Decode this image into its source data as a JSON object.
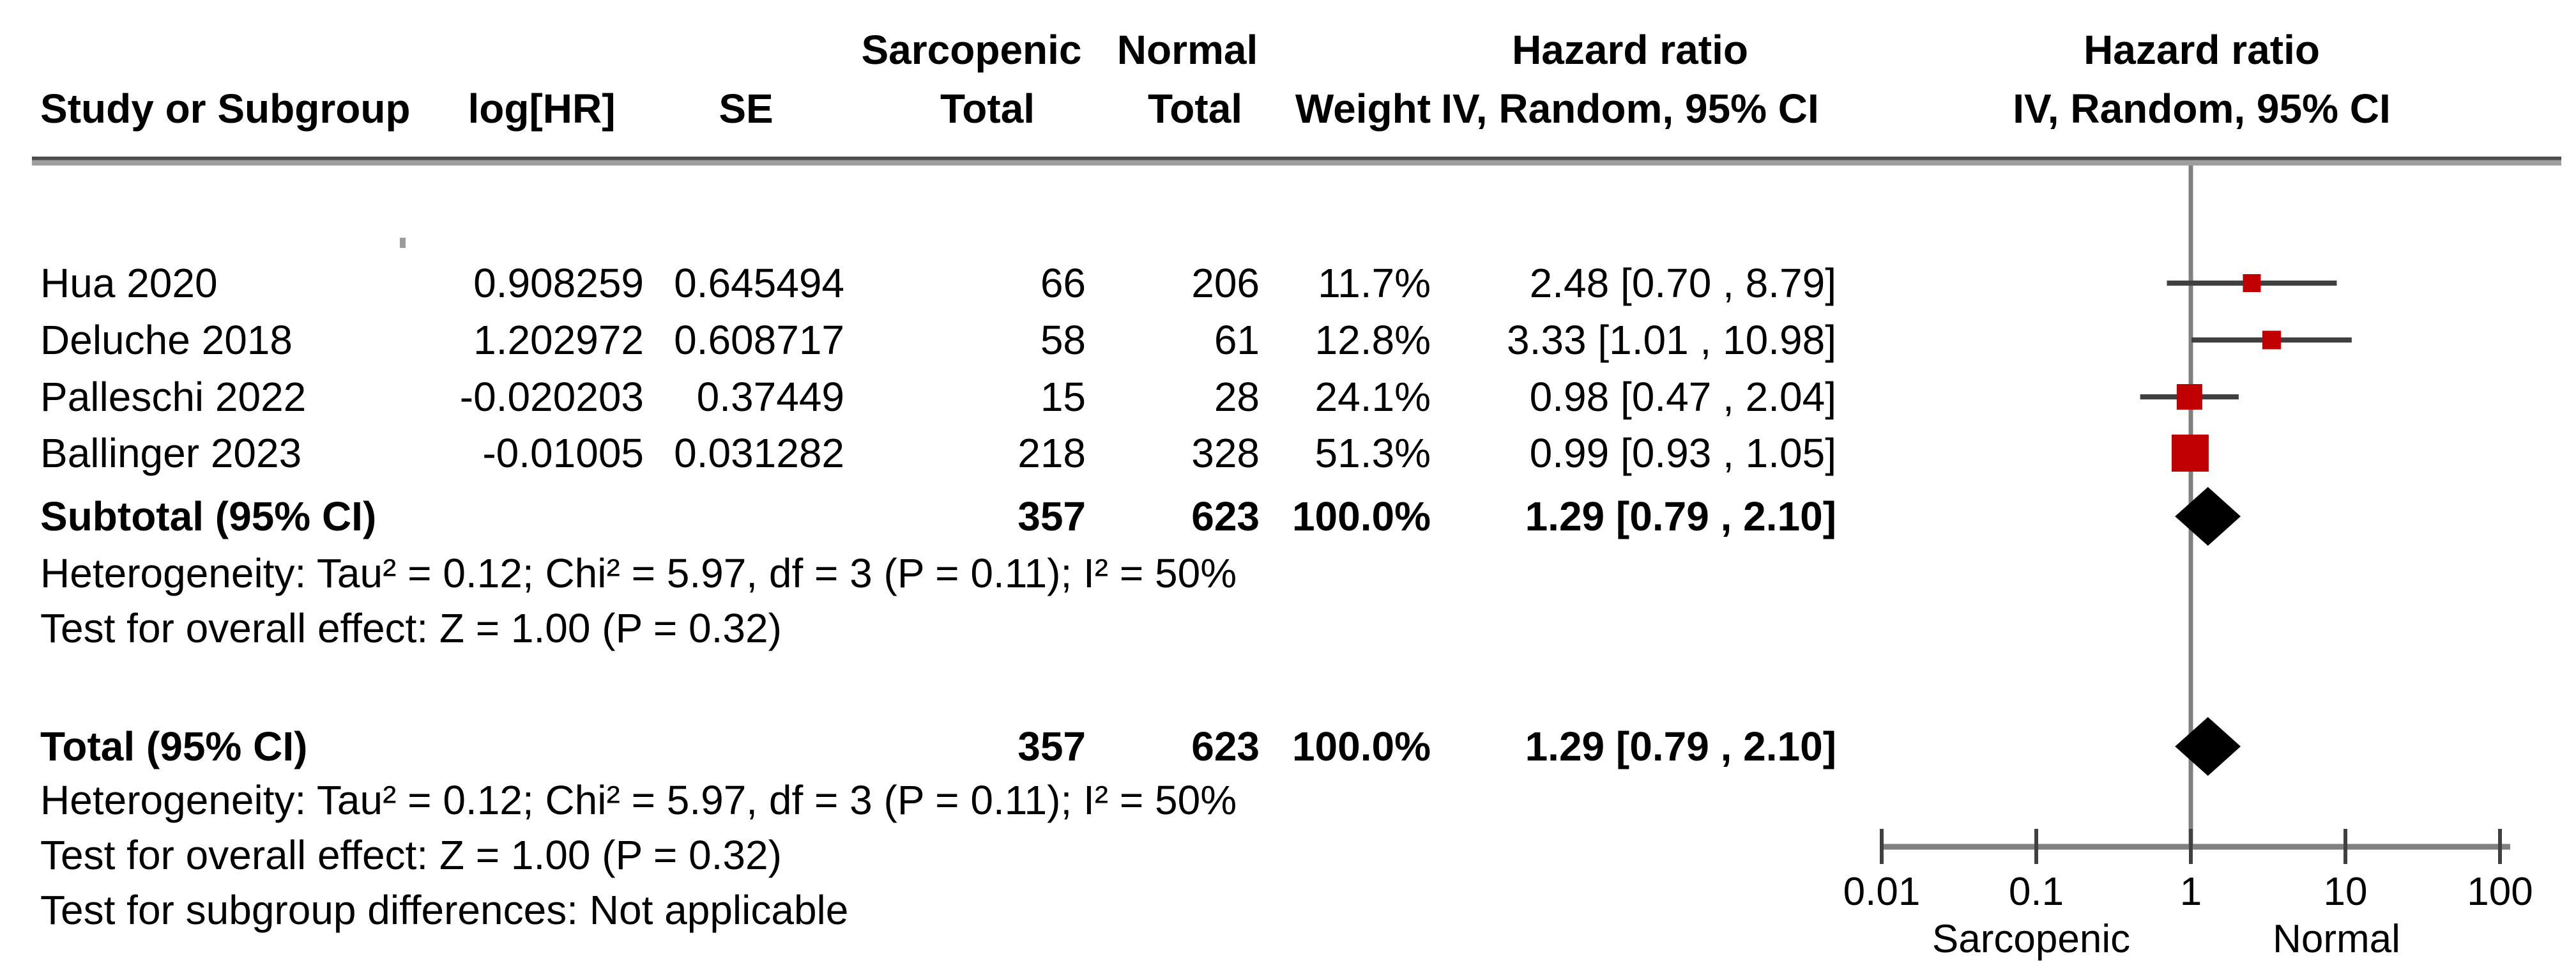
{
  "header": {
    "group1": "Sarcopenic",
    "group2": "Normal",
    "col_study": "Study or Subgroup",
    "col_loghr": "log[HR]",
    "col_se": "SE",
    "col_total1": "Total",
    "col_total2": "Total",
    "col_weight": "Weight",
    "hr_title1": "Hazard ratio",
    "hr_title2": "Hazard ratio",
    "hr_method1": "IV, Random, 95% CI",
    "hr_method2": "IV, Random, 95% CI"
  },
  "table": {
    "rows": [
      {
        "study": "Hua 2020",
        "loghr": "0.908259",
        "se": "0.645494",
        "s_total": "66",
        "n_total": "206",
        "weight": "11.7%",
        "ci_text": "2.48 [0.70 , 8.79]"
      },
      {
        "study": "Deluche 2018",
        "loghr": "1.202972",
        "se": "0.608717",
        "s_total": "58",
        "n_total": "61",
        "weight": "12.8%",
        "ci_text": "3.33 [1.01 , 10.98]"
      },
      {
        "study": "Palleschi 2022",
        "loghr": "-0.020203",
        "se": "0.37449",
        "s_total": "15",
        "n_total": "28",
        "weight": "24.1%",
        "ci_text": "0.98 [0.47 , 2.04]"
      },
      {
        "study": "Ballinger 2023",
        "loghr": "-0.01005",
        "se": "0.031282",
        "s_total": "218",
        "n_total": "328",
        "weight": "51.3%",
        "ci_text": "0.99 [0.93 , 1.05]"
      }
    ],
    "subtotal": {
      "study": "Subtotal (95% CI)",
      "loghr": "",
      "se": "",
      "s_total": "357",
      "n_total": "623",
      "weight": "100.0%",
      "ci_text": "1.29 [0.79 , 2.10]"
    },
    "total": {
      "study": "Total (95% CI)",
      "loghr": "",
      "se": "",
      "s_total": "357",
      "n_total": "623",
      "weight": "100.0%",
      "ci_text": "1.29 [0.79 , 2.10]"
    },
    "heterogeneity_subtotal": "Heterogeneity: Tau² = 0.12; Chi² = 5.97, df = 3 (P = 0.11); I² = 50%",
    "overall_effect_subtotal": "Test for overall effect: Z = 1.00 (P = 0.32)",
    "heterogeneity_total": "Heterogeneity: Tau² = 0.12; Chi² = 5.97, df = 3 (P = 0.11); I² = 50%",
    "overall_effect_total": "Test for overall effect: Z = 1.00 (P = 0.32)",
    "subgroup_diff": "Test for subgroup differences: Not applicable"
  },
  "chart_data": {
    "type": "forest",
    "x_scale": "log10",
    "x_range": [
      0.01,
      100
    ],
    "ticks": [
      0.01,
      0.1,
      1,
      10,
      100
    ],
    "tick_labels": [
      "0.01",
      "0.1",
      "1",
      "10",
      "100"
    ],
    "null_line": 1,
    "axis_labels": {
      "left": "Sarcopenic",
      "right": "Normal"
    },
    "studies": [
      {
        "name": "Hua 2020",
        "hr": 2.48,
        "lo": 0.7,
        "hi": 8.79,
        "weight_pct": 11.7
      },
      {
        "name": "Deluche 2018",
        "hr": 3.33,
        "lo": 1.01,
        "hi": 10.98,
        "weight_pct": 12.8
      },
      {
        "name": "Palleschi 2022",
        "hr": 0.98,
        "lo": 0.47,
        "hi": 2.04,
        "weight_pct": 24.1
      },
      {
        "name": "Ballinger 2023",
        "hr": 0.99,
        "lo": 0.93,
        "hi": 1.05,
        "weight_pct": 51.3
      }
    ],
    "pooled": [
      {
        "label": "Subtotal (95% CI)",
        "hr": 1.29,
        "lo": 0.79,
        "hi": 2.1
      },
      {
        "label": "Total (95% CI)",
        "hr": 1.29,
        "lo": 0.79,
        "hi": 2.1
      }
    ],
    "colors": {
      "marker": "#c00000",
      "diamond": "#000000",
      "ci_line": "#404040",
      "axis": "#808080",
      "tick": "#404040",
      "text": "#000000"
    }
  }
}
